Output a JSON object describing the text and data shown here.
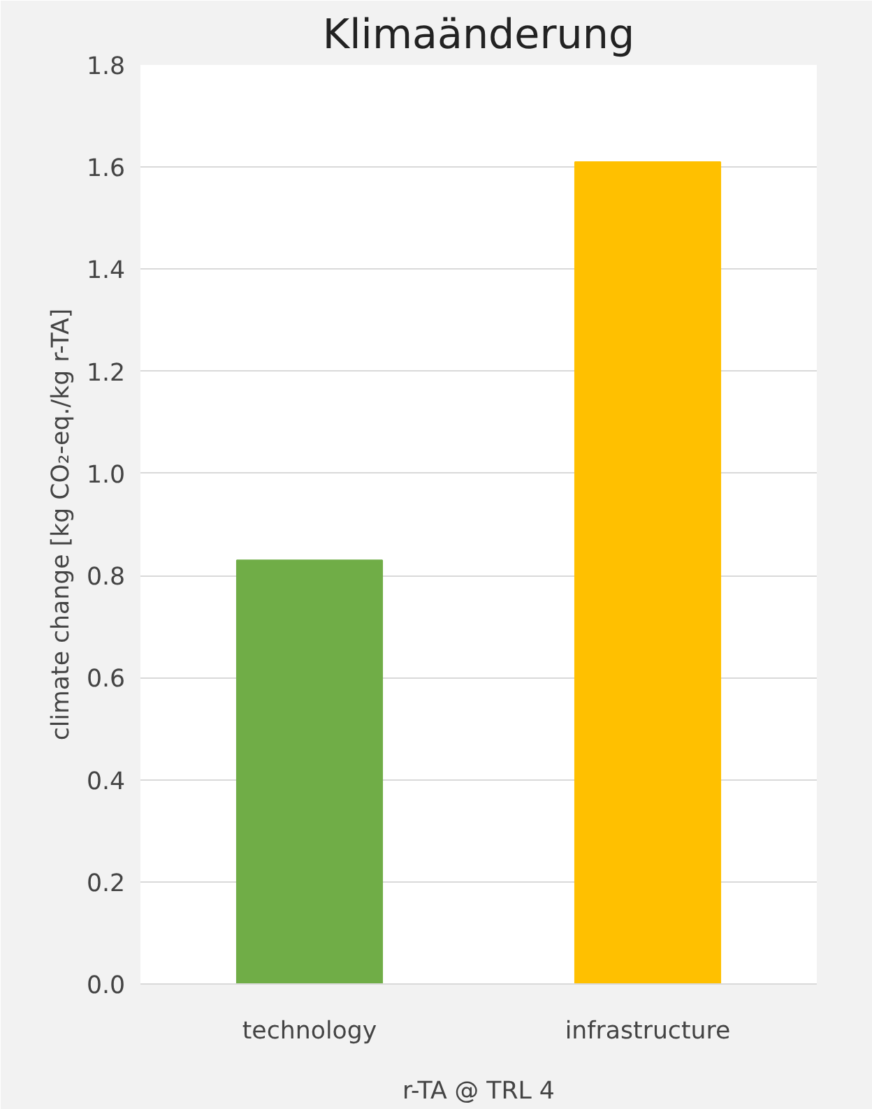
{
  "chart_data": {
    "type": "bar",
    "title": "Klimaänderung",
    "ylabel": "climate change [kg CO₂-eq./kg r-TA]",
    "xlabel": "r-TA @ TRL 4",
    "categories": [
      "technology",
      "infrastructure"
    ],
    "values": [
      0.83,
      1.61
    ],
    "colors": [
      "#70ad47",
      "#ffc000"
    ],
    "ylim": [
      0,
      1.8
    ],
    "yticks": [
      {
        "value": 0,
        "label": "0.0"
      },
      0.2,
      0.4,
      0.6,
      0.8,
      {
        "value": 1,
        "label": "1.0"
      },
      1.2,
      1.4,
      1.6,
      1.8
    ],
    "grid": "y"
  }
}
